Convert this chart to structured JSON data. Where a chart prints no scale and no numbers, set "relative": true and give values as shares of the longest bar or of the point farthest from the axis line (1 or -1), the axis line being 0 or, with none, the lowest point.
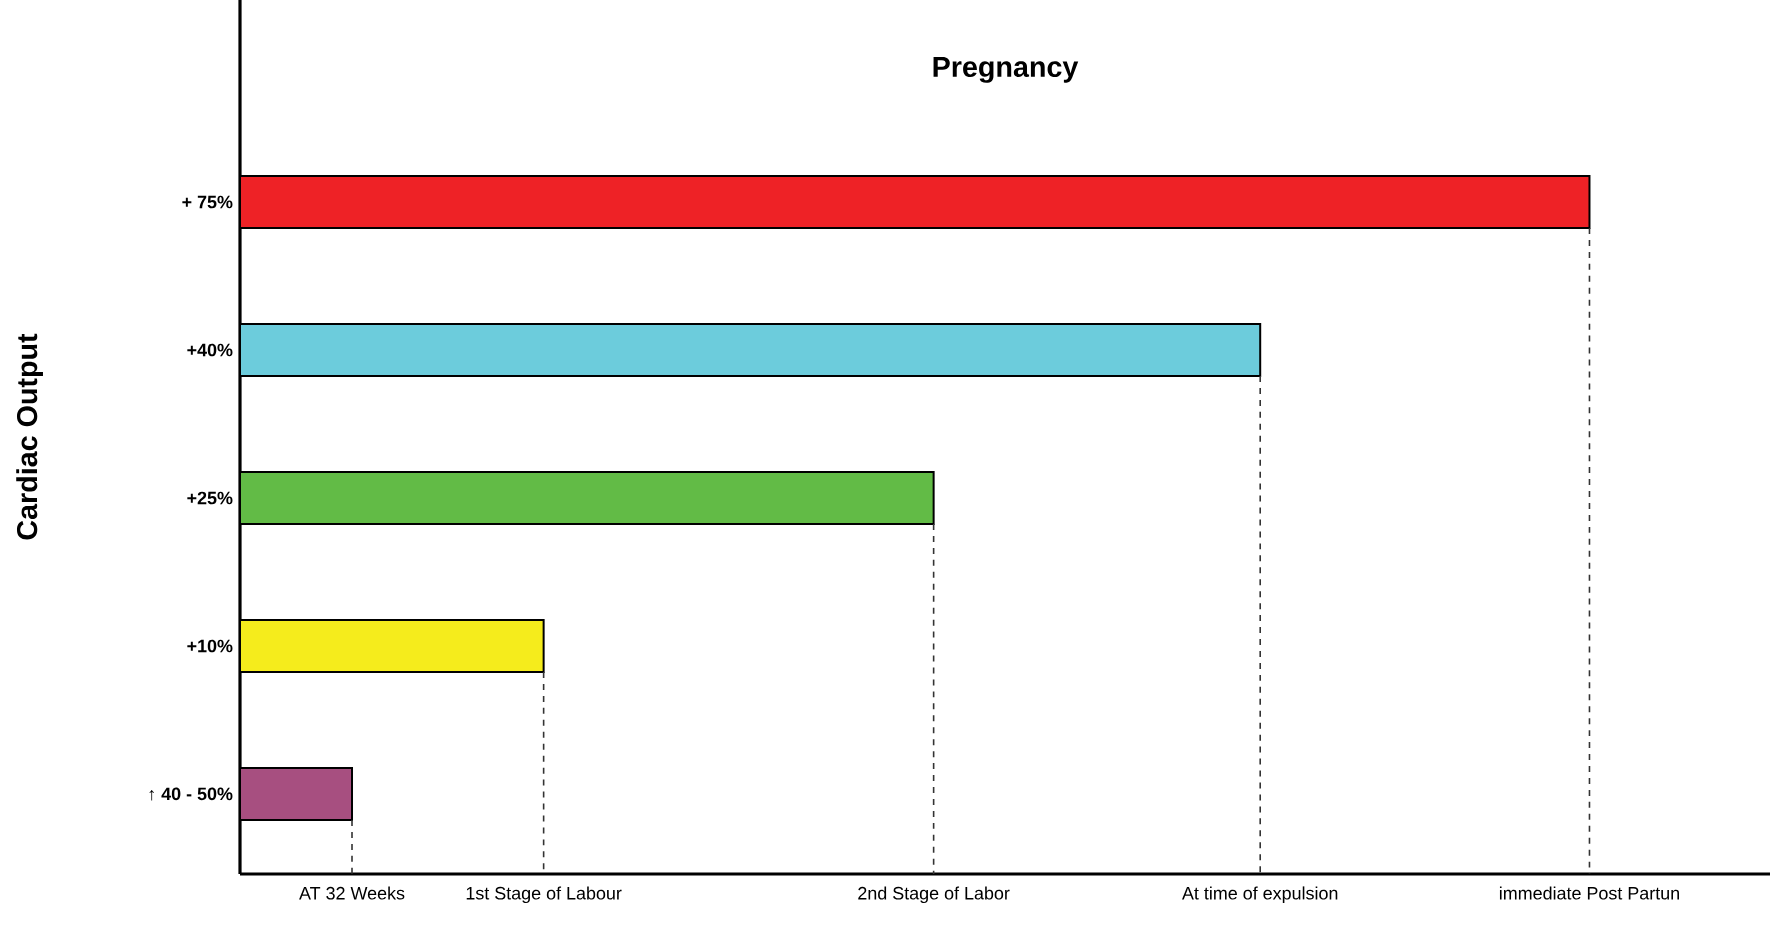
{
  "chart_data": {
    "type": "bar",
    "orientation": "horizontal",
    "relative": true,
    "title": "Pregnancy",
    "ylabel": "Cardiac Output",
    "categories": [
      "+ 75%",
      "+40%",
      "+25%",
      "+10%",
      "↑ 40 - 50%"
    ],
    "values": [
      1,
      0.756,
      0.514,
      0.225,
      0.083
    ],
    "colors": [
      "#ee2226",
      "#6cccdc",
      "#62bb46",
      "#f5ec1c",
      "#a74f80"
    ],
    "annotations": [
      "AT 32 Weeks",
      "1st Stage of Labour",
      "2nd Stage of Labor",
      "At time of expulsion",
      "immediate Post Partun"
    ]
  }
}
